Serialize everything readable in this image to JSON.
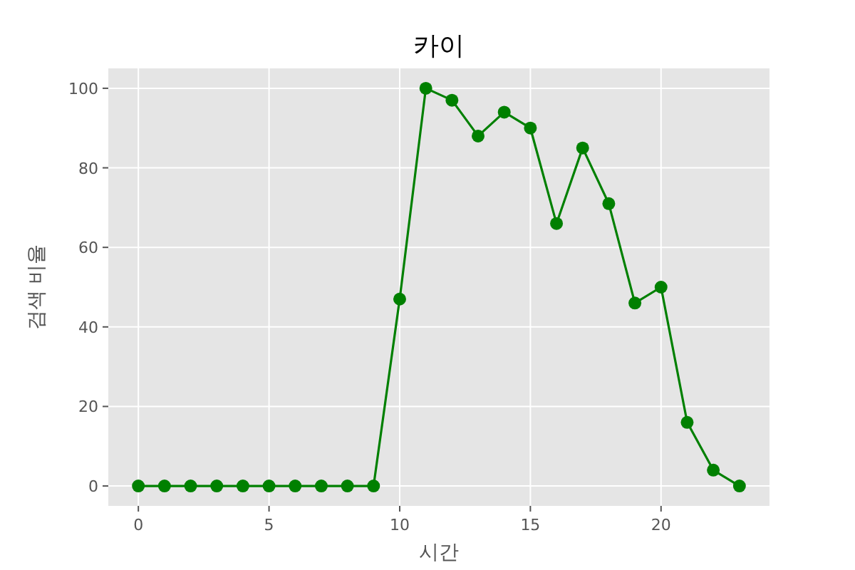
{
  "chart_data": {
    "type": "line",
    "title": "카이",
    "xlabel": "시간",
    "ylabel": "검색 비율",
    "x": [
      0,
      1,
      2,
      3,
      4,
      5,
      6,
      7,
      8,
      9,
      10,
      11,
      12,
      13,
      14,
      15,
      16,
      17,
      18,
      19,
      20,
      21,
      22,
      23
    ],
    "series": [
      {
        "color": "#008000",
        "values": [
          0,
          0,
          0,
          0,
          0,
          0,
          0,
          0,
          0,
          0,
          47,
          100,
          97,
          88,
          94,
          90,
          66,
          85,
          71,
          46,
          50,
          16,
          4,
          0
        ]
      }
    ],
    "xlim": [
      -1.15,
      24.15
    ],
    "xticks": [
      0,
      5,
      10,
      15,
      20
    ],
    "ylim": [
      -5,
      105
    ],
    "yticks": [
      0,
      20,
      40,
      60,
      80,
      100
    ],
    "grid": true,
    "marker": "circle",
    "line_style": "solid"
  }
}
